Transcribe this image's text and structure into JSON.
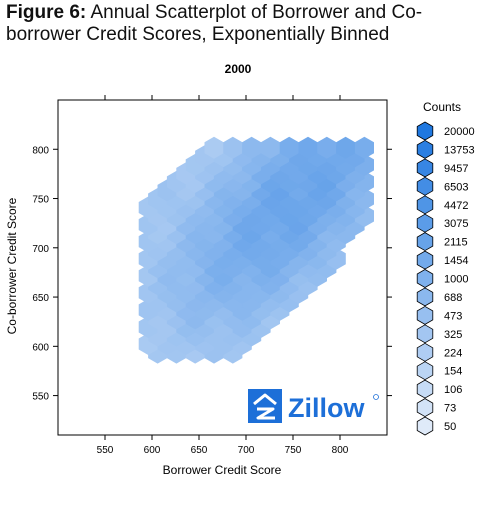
{
  "figure": {
    "label": "Figure 6:",
    "title": "Annual Scatterplot of Borrower and Co-borrower Credit Scores, Exponentially Binned"
  },
  "chart_data": {
    "type": "hexbin",
    "title": "2000",
    "xlabel": "Borrower Credit Score",
    "ylabel": "Co-borrower Credit Score",
    "xlim": [
      500,
      850
    ],
    "ylim": [
      510,
      850
    ],
    "xticks": [
      550,
      600,
      650,
      700,
      750,
      800
    ],
    "yticks": [
      550,
      600,
      650,
      700,
      750,
      800
    ],
    "legend": {
      "title": "Counts",
      "placement": "right",
      "levels": [
        20000,
        13753,
        9457,
        6503,
        4472,
        3075,
        2115,
        1454,
        1000,
        688,
        473,
        325,
        224,
        154,
        106,
        73,
        50
      ]
    },
    "bin_grid": {
      "x_start": 600,
      "x_step": 10,
      "y_start": 590,
      "y_step": 10,
      "x_count": 24,
      "y_count": 24
    },
    "counts_note": "counts per hexagonal bin estimated from color intensity",
    "watermark_text": "Zillow",
    "colors": {
      "light": "#dfeaf9",
      "dark": "#1f78e0",
      "outline": "#000000"
    }
  }
}
